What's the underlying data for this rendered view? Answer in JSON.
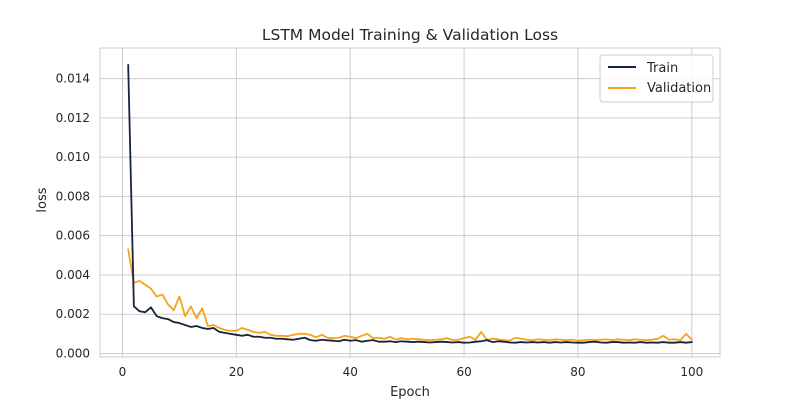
{
  "chart_data": {
    "type": "line",
    "title": "LSTM Model Training & Validation Loss",
    "xlabel": "Epoch",
    "ylabel": "loss",
    "xlim": [
      -3.95,
      104.95
    ],
    "ylim": [
      -0.00018,
      0.01556
    ],
    "xticks": [
      0,
      20,
      40,
      60,
      80,
      100
    ],
    "xtick_labels": [
      "0",
      "20",
      "40",
      "60",
      "80",
      "100"
    ],
    "yticks": [
      0.0,
      0.002,
      0.004,
      0.006,
      0.008,
      0.01,
      0.012,
      0.014
    ],
    "ytick_labels": [
      "0.000",
      "0.002",
      "0.004",
      "0.006",
      "0.008",
      "0.010",
      "0.012",
      "0.014"
    ],
    "grid": true,
    "legend_position": "top-right",
    "x": [
      1,
      2,
      3,
      4,
      5,
      6,
      7,
      8,
      9,
      10,
      11,
      12,
      13,
      14,
      15,
      16,
      17,
      18,
      19,
      20,
      21,
      22,
      23,
      24,
      25,
      26,
      27,
      28,
      29,
      30,
      31,
      32,
      33,
      34,
      35,
      36,
      37,
      38,
      39,
      40,
      41,
      42,
      43,
      44,
      45,
      46,
      47,
      48,
      49,
      50,
      51,
      52,
      53,
      54,
      55,
      56,
      57,
      58,
      59,
      60,
      61,
      62,
      63,
      64,
      65,
      66,
      67,
      68,
      69,
      70,
      71,
      72,
      73,
      74,
      75,
      76,
      77,
      78,
      79,
      80,
      81,
      82,
      83,
      84,
      85,
      86,
      87,
      88,
      89,
      90,
      91,
      92,
      93,
      94,
      95,
      96,
      97,
      98,
      99,
      100
    ],
    "series": [
      {
        "name": "Train",
        "color": "#15233b",
        "values": [
          0.0147,
          0.0024,
          0.00215,
          0.0021,
          0.00235,
          0.0019,
          0.0018,
          0.00175,
          0.0016,
          0.00155,
          0.00145,
          0.00135,
          0.0014,
          0.0013,
          0.00125,
          0.0013,
          0.0011,
          0.00105,
          0.001,
          0.00095,
          0.0009,
          0.00095,
          0.00085,
          0.00085,
          0.0008,
          0.0008,
          0.00075,
          0.00075,
          0.00072,
          0.0007,
          0.00075,
          0.0008,
          0.00068,
          0.00065,
          0.0007,
          0.00067,
          0.00065,
          0.00062,
          0.0007,
          0.00065,
          0.00068,
          0.0006,
          0.00065,
          0.00068,
          0.0006,
          0.0006,
          0.00062,
          0.00058,
          0.00062,
          0.0006,
          0.00058,
          0.0006,
          0.00058,
          0.00056,
          0.00058,
          0.0006,
          0.00058,
          0.00056,
          0.00058,
          0.00055,
          0.00056,
          0.0006,
          0.00062,
          0.00068,
          0.00058,
          0.00062,
          0.0006,
          0.00056,
          0.00055,
          0.00058,
          0.00056,
          0.00058,
          0.00056,
          0.00058,
          0.00055,
          0.00058,
          0.00056,
          0.00058,
          0.00056,
          0.00055,
          0.00055,
          0.00058,
          0.0006,
          0.00056,
          0.00055,
          0.00058,
          0.00058,
          0.00055,
          0.00056,
          0.00055,
          0.00058,
          0.00055,
          0.00056,
          0.00055,
          0.00058,
          0.00055,
          0.00055,
          0.00058,
          0.00055,
          0.00058
        ]
      },
      {
        "name": "Validation",
        "color": "#f5a31a",
        "values": [
          0.0053,
          0.0036,
          0.0037,
          0.0035,
          0.0033,
          0.0029,
          0.003,
          0.0025,
          0.0022,
          0.0029,
          0.0019,
          0.0024,
          0.0018,
          0.0023,
          0.0014,
          0.00145,
          0.0013,
          0.0012,
          0.00115,
          0.00115,
          0.0013,
          0.0012,
          0.0011,
          0.00105,
          0.0011,
          0.00095,
          0.0009,
          0.0009,
          0.00088,
          0.00095,
          0.001,
          0.001,
          0.00095,
          0.00082,
          0.00095,
          0.0008,
          0.00078,
          0.0008,
          0.0009,
          0.00085,
          0.00078,
          0.0009,
          0.001,
          0.00078,
          0.0008,
          0.00075,
          0.00085,
          0.0007,
          0.00078,
          0.00072,
          0.00075,
          0.00072,
          0.0007,
          0.00068,
          0.0007,
          0.00072,
          0.00078,
          0.00068,
          0.0007,
          0.00078,
          0.00085,
          0.0007,
          0.0011,
          0.0007,
          0.00075,
          0.00072,
          0.00068,
          0.00065,
          0.0008,
          0.00075,
          0.0007,
          0.00068,
          0.00072,
          0.0007,
          0.00068,
          0.00072,
          0.0007,
          0.00068,
          0.0007,
          0.00065,
          0.00068,
          0.0007,
          0.00068,
          0.0007,
          0.00072,
          0.00068,
          0.00072,
          0.0007,
          0.00068,
          0.00072,
          0.0007,
          0.00068,
          0.0007,
          0.00075,
          0.0009,
          0.0007,
          0.00072,
          0.00068,
          0.001,
          0.0007
        ]
      }
    ]
  },
  "colors": {
    "background": "#ffffff",
    "grid": "#cccccc",
    "spine": "#cccccc",
    "text": "#262626"
  }
}
